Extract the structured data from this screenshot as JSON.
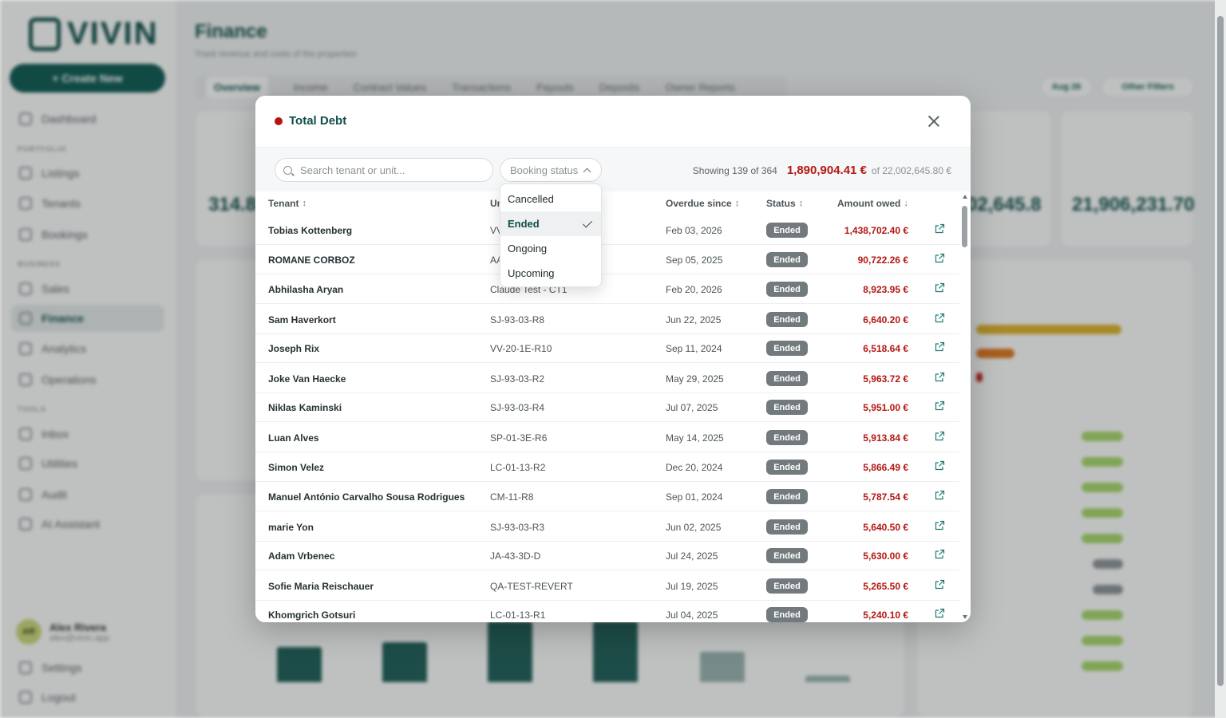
{
  "app": {
    "logo_text": "VIVIN",
    "create_button": "+ Create New",
    "nav_sections": [
      "PORTFOLIO",
      "BUSINESS",
      "TOOLS"
    ],
    "nav_items": [
      "Dashboard",
      "Listings",
      "Tenants",
      "Bookings",
      "Sales",
      "Finance",
      "Analytics",
      "Operations",
      "Inbox",
      "Utilities",
      "Audit",
      "AI Assistant",
      "Settings",
      "Logout"
    ],
    "user": {
      "initials": "AR",
      "name": "Alex Rivera",
      "email": "alex@vivin.app"
    },
    "page_title": "Finance",
    "page_subtitle": "Track revenue and costs of the properties",
    "tabs": [
      "Overview",
      "Income",
      "Contract Values",
      "Transactions",
      "Payouts",
      "Deposits",
      "Owner Reports"
    ],
    "filter_chips": [
      "Aug 26",
      "Other Filters"
    ],
    "card_values": [
      "314.8",
      "02,645.8",
      "21,906,231.70"
    ]
  },
  "modal": {
    "title": "Total Debt",
    "status_dot_color": "#b31712",
    "search_placeholder": "Search tenant or unit...",
    "status_filter_label": "Booking status",
    "showing_text": "Showing 139 of 364",
    "debt_total": "1,890,904.41 €",
    "of_total": "of 22,002,645.80 €",
    "columns": {
      "tenant": "Tenant",
      "unit": "Unit",
      "overdue": "Overdue since",
      "status": "Status",
      "amount": "Amount owed"
    },
    "status_options": [
      {
        "label": "Cancelled",
        "selected": false
      },
      {
        "label": "Ended",
        "selected": true
      },
      {
        "label": "Ongoing",
        "selected": false
      },
      {
        "label": "Upcoming",
        "selected": false
      }
    ],
    "rows": [
      {
        "tenant": "Tobias Kottenberg",
        "unit": "VV-20-1E-R6",
        "overdue": "Feb 03, 2026",
        "status": "Ended",
        "amount": "1,438,702.40 €"
      },
      {
        "tenant": "ROMANE CORBOZ",
        "unit": "AA-01-2B-R1",
        "overdue": "Sep 05, 2025",
        "status": "Ended",
        "amount": "90,722.26 €"
      },
      {
        "tenant": "Abhilasha Aryan",
        "unit": "Claude Test - CT1",
        "overdue": "Feb 20, 2026",
        "status": "Ended",
        "amount": "8,923.95 €"
      },
      {
        "tenant": "Sam Haverkort",
        "unit": "SJ-93-03-R8",
        "overdue": "Jun 22, 2025",
        "status": "Ended",
        "amount": "6,640.20 €"
      },
      {
        "tenant": "Joseph Rix",
        "unit": "VV-20-1E-R10",
        "overdue": "Sep 11, 2024",
        "status": "Ended",
        "amount": "6,518.64 €"
      },
      {
        "tenant": "Joke Van Haecke",
        "unit": "SJ-93-03-R2",
        "overdue": "May 29, 2025",
        "status": "Ended",
        "amount": "5,963.72 €"
      },
      {
        "tenant": "Niklas Kaminski",
        "unit": "SJ-93-03-R4",
        "overdue": "Jul 07, 2025",
        "status": "Ended",
        "amount": "5,951.00 €"
      },
      {
        "tenant": "Luan Alves",
        "unit": "SP-01-3E-R6",
        "overdue": "May 14, 2025",
        "status": "Ended",
        "amount": "5,913.84 €"
      },
      {
        "tenant": "Simon Velez",
        "unit": "LC-01-13-R2",
        "overdue": "Dec 20, 2024",
        "status": "Ended",
        "amount": "5,866.49 €"
      },
      {
        "tenant": "Manuel António Carvalho Sousa Rodrigues",
        "unit": "CM-11-R8",
        "overdue": "Sep 01, 2024",
        "status": "Ended",
        "amount": "5,787.54 €"
      },
      {
        "tenant": "marie Yon",
        "unit": "SJ-93-03-R3",
        "overdue": "Jun 02, 2025",
        "status": "Ended",
        "amount": "5,640.50 €"
      },
      {
        "tenant": "Adam Vrbenec",
        "unit": "JA-43-3D-D",
        "overdue": "Jul 24, 2025",
        "status": "Ended",
        "amount": "5,630.00 €"
      },
      {
        "tenant": "Sofie Maria Reischauer",
        "unit": "QA-TEST-REVERT",
        "overdue": "Jul 19, 2025",
        "status": "Ended",
        "amount": "5,265.50 €"
      },
      {
        "tenant": "Khomgrich Gotsuri",
        "unit": "LC-01-13-R1",
        "overdue": "Jul 04, 2025",
        "status": "Ended",
        "amount": "5,240.10 €"
      }
    ]
  }
}
